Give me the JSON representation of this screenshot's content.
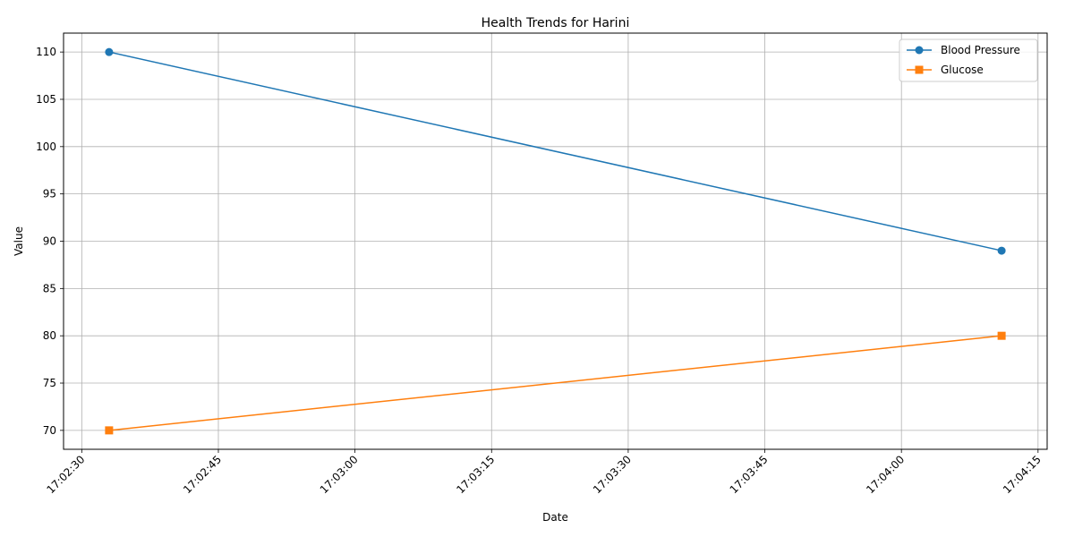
{
  "chart_data": {
    "type": "line",
    "title": "Health Trends for Harini",
    "xlabel": "Date",
    "ylabel": "Value",
    "x": [
      "17:02:33",
      "17:04:11"
    ],
    "series": [
      {
        "name": "Blood Pressure",
        "values": [
          110,
          89
        ],
        "color": "#1f77b4",
        "marker": "circle"
      },
      {
        "name": "Glucose",
        "values": [
          70,
          80
        ],
        "color": "#ff7f0e",
        "marker": "square"
      }
    ],
    "xlim": [
      "17:02:28",
      "17:04:16"
    ],
    "ylim": [
      68,
      112
    ],
    "xticks": [
      "17:02:30",
      "17:02:45",
      "17:03:00",
      "17:03:15",
      "17:03:30",
      "17:03:45",
      "17:04:00",
      "17:04:15"
    ],
    "yticks": [
      70,
      75,
      80,
      85,
      90,
      95,
      100,
      105,
      110
    ],
    "grid": true,
    "legend_position": "top-right"
  }
}
